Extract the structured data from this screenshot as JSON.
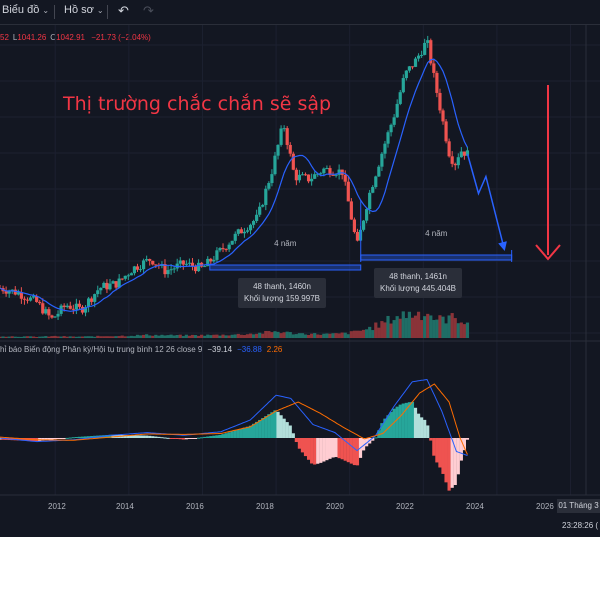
{
  "toolbar": {
    "chart_menu": "Biểu đồ",
    "profile_menu": "Hồ sơ",
    "undo_icon": "undo-icon",
    "redo_icon": "redo-icon"
  },
  "ohlc": {
    "open_partial": "52",
    "low_label": "L",
    "low": "1041.26",
    "close_label": "C",
    "close": "1042.91",
    "change": "−21.73 (−2.04%)"
  },
  "annotations": {
    "headline": "Thị trường chắc chắn sẽ sập",
    "span1_label": "4 năm",
    "span2_label": "4 năm",
    "tooltip1_line1": "48 thanh, 1460n",
    "tooltip1_line2": "Khối lượng 159.997B",
    "tooltip2_line1": "48 thanh, 1461n",
    "tooltip2_line2": "Khối lượng 445.404B"
  },
  "indicator": {
    "label": "hỉ báo Biến động Phân kỳ/Hội tụ trung bình 12 26 close 9",
    "macd_value": "−39.14",
    "signal_value": "−36.88",
    "hist_value": "2.26"
  },
  "time_axis": {
    "years": [
      "2012",
      "2014",
      "2016",
      "2018",
      "2020",
      "2022",
      "2024",
      "2026"
    ],
    "current_date": "01 Tháng 3",
    "clock": "23:28:26 ("
  },
  "colors": {
    "background": "#131722",
    "up": "#26a69a",
    "down": "#ef5350",
    "accent_red": "#f23645",
    "ma_line": "#2962ff",
    "signal_line": "#ff6d00",
    "measure_band": "#2962ff"
  },
  "chart_data": {
    "type": "candlestick",
    "x_range": [
      2010.5,
      2026.8
    ],
    "y_range": [
      300,
      1600
    ],
    "close": [
      [
        2010.5,
        490
      ],
      [
        2011.0,
        470
      ],
      [
        2011.5,
        430
      ],
      [
        2011.9,
        360
      ],
      [
        2012.3,
        420
      ],
      [
        2012.7,
        400
      ],
      [
        2013.2,
        490
      ],
      [
        2013.7,
        510
      ],
      [
        2014.1,
        570
      ],
      [
        2014.6,
        610
      ],
      [
        2015.0,
        560
      ],
      [
        2015.5,
        590
      ],
      [
        2016.0,
        570
      ],
      [
        2016.6,
        660
      ],
      [
        2017.0,
        720
      ],
      [
        2017.5,
        780
      ],
      [
        2017.9,
        980
      ],
      [
        2018.2,
        1170
      ],
      [
        2018.5,
        950
      ],
      [
        2018.9,
        940
      ],
      [
        2019.3,
        980
      ],
      [
        2019.8,
        970
      ],
      [
        2020.2,
        660
      ],
      [
        2020.5,
        860
      ],
      [
        2020.9,
        1060
      ],
      [
        2021.2,
        1200
      ],
      [
        2021.5,
        1370
      ],
      [
        2021.8,
        1430
      ],
      [
        2022.1,
        1510
      ],
      [
        2022.3,
        1350
      ],
      [
        2022.5,
        1200
      ],
      [
        2022.7,
        1050
      ],
      [
        2022.85,
        1000
      ],
      [
        2023.0,
        1060
      ],
      [
        2023.2,
        1043
      ]
    ],
    "volume": [
      [
        2010.5,
        0.07
      ],
      [
        2011.0,
        0.06
      ],
      [
        2011.5,
        0.05
      ],
      [
        2012.0,
        0.07
      ],
      [
        2012.5,
        0.05
      ],
      [
        2013.0,
        0.06
      ],
      [
        2013.5,
        0.08
      ],
      [
        2014.0,
        0.09
      ],
      [
        2014.5,
        0.12
      ],
      [
        2015.0,
        0.11
      ],
      [
        2015.5,
        0.1
      ],
      [
        2016.0,
        0.11
      ],
      [
        2016.5,
        0.12
      ],
      [
        2017.0,
        0.14
      ],
      [
        2017.5,
        0.18
      ],
      [
        2018.0,
        0.26
      ],
      [
        2018.5,
        0.18
      ],
      [
        2019.0,
        0.16
      ],
      [
        2019.5,
        0.15
      ],
      [
        2020.0,
        0.2
      ],
      [
        2020.5,
        0.36
      ],
      [
        2020.9,
        0.58
      ],
      [
        2021.2,
        0.8
      ],
      [
        2021.5,
        0.92
      ],
      [
        2021.8,
        0.95
      ],
      [
        2022.1,
        1.0
      ],
      [
        2022.4,
        0.7
      ],
      [
        2022.7,
        0.8
      ],
      [
        2023.0,
        0.75
      ],
      [
        2023.2,
        0.6
      ]
    ],
    "macd": [
      [
        2010.5,
        0
      ],
      [
        2011.5,
        -8
      ],
      [
        2012.5,
        -4
      ],
      [
        2013.5,
        6
      ],
      [
        2014.5,
        12
      ],
      [
        2015.5,
        6
      ],
      [
        2016.5,
        14
      ],
      [
        2017.3,
        40
      ],
      [
        2018.0,
        95
      ],
      [
        2018.4,
        88
      ],
      [
        2019.0,
        30
      ],
      [
        2019.6,
        12
      ],
      [
        2020.2,
        -28
      ],
      [
        2020.7,
        5
      ],
      [
        2021.2,
        70
      ],
      [
        2021.7,
        125
      ],
      [
        2022.1,
        130
      ],
      [
        2022.5,
        60
      ],
      [
        2022.9,
        -30
      ],
      [
        2023.2,
        -39
      ]
    ],
    "signal": [
      [
        2010.5,
        2
      ],
      [
        2011.5,
        -4
      ],
      [
        2012.5,
        -5
      ],
      [
        2013.5,
        2
      ],
      [
        2014.5,
        9
      ],
      [
        2015.5,
        8
      ],
      [
        2016.5,
        10
      ],
      [
        2017.3,
        25
      ],
      [
        2018.0,
        60
      ],
      [
        2018.6,
        80
      ],
      [
        2019.2,
        55
      ],
      [
        2019.8,
        25
      ],
      [
        2020.4,
        -2
      ],
      [
        2020.9,
        10
      ],
      [
        2021.4,
        50
      ],
      [
        2021.9,
        100
      ],
      [
        2022.3,
        120
      ],
      [
        2022.7,
        80
      ],
      [
        2023.0,
        0
      ],
      [
        2023.2,
        -37
      ]
    ],
    "annotations": {
      "projection": [
        [
          2023.2,
          1043
        ],
        [
          2023.5,
          880
        ],
        [
          2023.7,
          950
        ],
        [
          2024.2,
          650
        ]
      ],
      "spans": [
        [
          2016.2,
          2020.3
        ],
        [
          2020.3,
          2024.4
        ]
      ]
    }
  }
}
